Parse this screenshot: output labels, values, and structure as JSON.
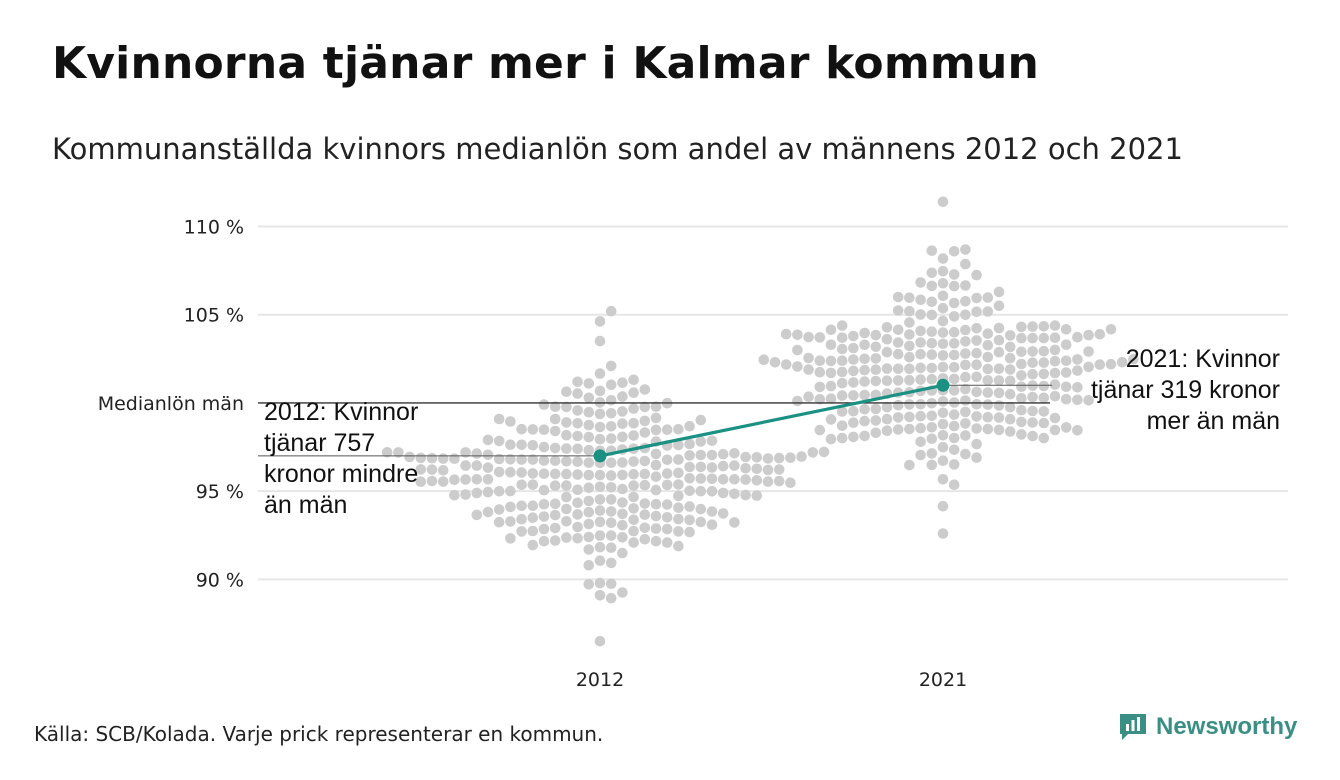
{
  "header": {
    "title": "Kvinnorna tjänar mer i Kalmar kommun",
    "subtitle": "Kommunanställda kvinnors medianlön som andel av männens 2012 och 2021"
  },
  "footer": {
    "source": "Källa: SCB/Kolada. Varje prick representerar en kommun.",
    "brand": "Newsworthy"
  },
  "colors": {
    "dots": "#cccccc",
    "highlight": "#1a9183",
    "reference_line": "#333333",
    "grid": "#e6e6e6",
    "brand": "#3a8f85"
  },
  "chart_data": {
    "type": "scatter",
    "subtype": "beeswarm",
    "categories": [
      "2012",
      "2021"
    ],
    "ylim": [
      86,
      111.5
    ],
    "y_ticks": [
      {
        "value": 90,
        "label": "90 %"
      },
      {
        "value": 95,
        "label": "95 %"
      },
      {
        "value": 105,
        "label": "105 %"
      },
      {
        "value": 110,
        "label": "110 %"
      }
    ],
    "reference_line": {
      "value": 100,
      "label": "Medianlön män"
    },
    "grid": true,
    "highlight_series": {
      "values": [
        {
          "x": "2012",
          "y": 97.0
        },
        {
          "x": "2021",
          "y": 101.0
        }
      ]
    },
    "annotations": [
      {
        "x": "2012",
        "lines": [
          "2012: Kvinnor",
          "tjänar 757",
          "kronor mindre",
          "än män"
        ]
      },
      {
        "x": "2021",
        "lines": [
          "2021: Kvinnor",
          "tjänar 319 kronor",
          "mer än män"
        ]
      }
    ],
    "distributions": [
      {
        "x": "2012",
        "n": 290,
        "center": 95.9,
        "spread": 2.55,
        "min": 86.5,
        "max": 105.2
      },
      {
        "x": "2021",
        "n": 290,
        "center": 101.4,
        "spread": 2.55,
        "min": 92.6,
        "max": 111.4
      }
    ]
  }
}
